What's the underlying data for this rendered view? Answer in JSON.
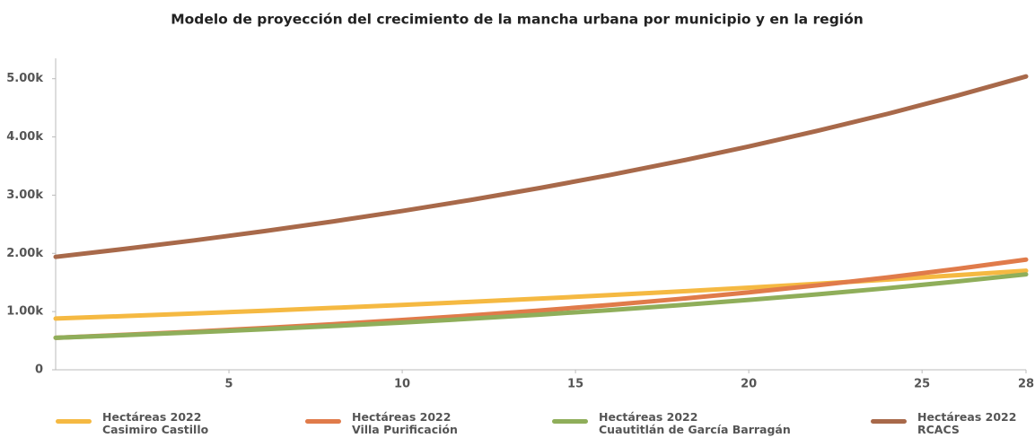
{
  "chart_data": {
    "type": "line",
    "title": "Modelo de proyección del crecimiento de la mancha urbana por municipio y en la región",
    "x": [
      0,
      2,
      4,
      6,
      8,
      10,
      12,
      14,
      16,
      18,
      20,
      22,
      24,
      26,
      28
    ],
    "series": [
      {
        "name": "Hectáreas 2022\nCasimiro Castillo",
        "color": "#f5b942",
        "values": [
          880,
          923,
          967,
          1014,
          1063,
          1114,
          1168,
          1224,
          1283,
          1345,
          1410,
          1478,
          1549,
          1624,
          1702
        ]
      },
      {
        "name": "Hectáreas 2022\nVilla Purificación",
        "color": "#e07b4a",
        "values": [
          550,
          601,
          656,
          717,
          783,
          855,
          934,
          1020,
          1114,
          1217,
          1329,
          1452,
          1586,
          1732,
          1892
        ]
      },
      {
        "name": "Hectáreas 2022\nCuautitlán de García Barragán",
        "color": "#8fae5a",
        "values": [
          550,
          595,
          643,
          695,
          751,
          812,
          878,
          949,
          1026,
          1110,
          1200,
          1297,
          1402,
          1516,
          1639
        ]
      },
      {
        "name": "Hectáreas 2022\nRCACS",
        "color": "#a8694a",
        "values": [
          1940,
          2077,
          2223,
          2380,
          2548,
          2728,
          2920,
          3126,
          3347,
          3583,
          3836,
          4107,
          4396,
          4707,
          5039
        ]
      }
    ],
    "xlim": [
      0,
      28
    ],
    "xticks": [
      5,
      10,
      15,
      20,
      25,
      28
    ],
    "ylim": [
      0,
      5350
    ],
    "yticks": [
      0,
      {
        "value": 1000,
        "label": "1.00k"
      },
      {
        "value": 2000,
        "label": "2.00k"
      },
      {
        "value": 3000,
        "label": "3.00k"
      },
      {
        "value": 4000,
        "label": "4.00k"
      },
      {
        "value": 5000,
        "label": "5.00k"
      }
    ],
    "grid": false
  }
}
